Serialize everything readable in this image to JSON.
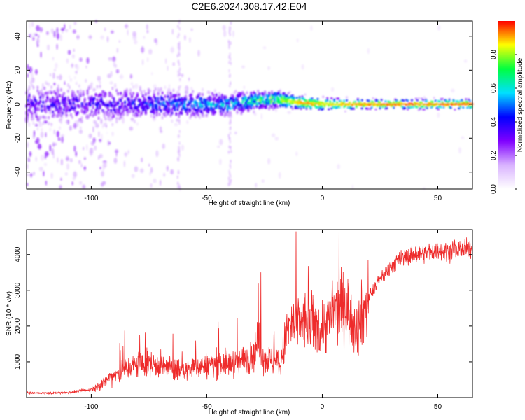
{
  "figure_title": "C2E6.2024.308.17.42.E04",
  "chart_data": [
    {
      "type": "heatmap",
      "title": "",
      "xlabel": "Height of straight line (km)",
      "ylabel": "Frequency (Hz)",
      "xlim": [
        -128,
        65
      ],
      "ylim": [
        -50,
        49
      ],
      "xticks": [
        -100,
        -50,
        0,
        50
      ],
      "yticks": [
        -40,
        -20,
        0,
        20,
        40
      ],
      "colorbar": {
        "label": "Normalized spectral amplitude",
        "range": [
          0,
          1
        ],
        "ticks": [
          0.0,
          0.2,
          0.4,
          0.6,
          0.8
        ],
        "colors": [
          "#ffffff",
          "#d9b3ff",
          "#8000ff",
          "#0000ff",
          "#00e0ff",
          "#00ff40",
          "#ffff00",
          "#ff0000"
        ]
      },
      "signal_track": [
        {
          "x": -100,
          "freq_center": 0,
          "width": 12,
          "peak_amp": 0.35
        },
        {
          "x": -80,
          "freq_center": 0,
          "width": 10,
          "peak_amp": 0.4
        },
        {
          "x": -60,
          "freq_center": 0,
          "width": 8,
          "peak_amp": 0.5
        },
        {
          "x": -40,
          "freq_center": 0,
          "width": 7,
          "peak_amp": 0.55
        },
        {
          "x": -30,
          "freq_center": 2,
          "width": 6,
          "peak_amp": 0.65
        },
        {
          "x": -20,
          "freq_center": 3,
          "width": 5,
          "peak_amp": 0.75
        },
        {
          "x": -10,
          "freq_center": 1,
          "width": 4,
          "peak_amp": 0.95
        },
        {
          "x": 0,
          "freq_center": 0,
          "width": 4,
          "peak_amp": 0.9
        },
        {
          "x": 20,
          "freq_center": 0,
          "width": 3,
          "peak_amp": 0.95
        },
        {
          "x": 40,
          "freq_center": 0,
          "width": 3,
          "peak_amp": 0.98
        },
        {
          "x": 65,
          "freq_center": 0,
          "width": 3,
          "peak_amp": 1.0
        }
      ]
    },
    {
      "type": "line",
      "title": "",
      "xlabel": "Height of straight line (km)",
      "ylabel": "SNR (10 * v/v)",
      "xlim": [
        -128,
        65
      ],
      "ylim": [
        0,
        4700
      ],
      "xticks": [
        -100,
        -50,
        0,
        50
      ],
      "yticks": [
        1000,
        2000,
        3000,
        4000
      ],
      "color": "#ee2b2b",
      "series": [
        {
          "x": [
            -128,
            -120,
            -110,
            -100,
            -95,
            -90,
            -85,
            -80,
            -75,
            -70,
            -65,
            -60,
            -55,
            -50,
            -45,
            -40,
            -35,
            -30,
            -28,
            -25,
            -20,
            -18,
            -15,
            -10,
            -5,
            0,
            5,
            10,
            15,
            20,
            25,
            30,
            35,
            40,
            45,
            50,
            55,
            60,
            65
          ],
          "values": [
            130,
            120,
            140,
            220,
            400,
            650,
            800,
            900,
            950,
            900,
            800,
            750,
            850,
            900,
            950,
            950,
            1000,
            1200,
            1500,
            1100,
            1000,
            900,
            1950,
            2100,
            2100,
            1900,
            2400,
            2600,
            1900,
            2800,
            3300,
            3700,
            3900,
            4000,
            4050,
            4100,
            4100,
            4150,
            4150
          ]
        }
      ]
    }
  ]
}
